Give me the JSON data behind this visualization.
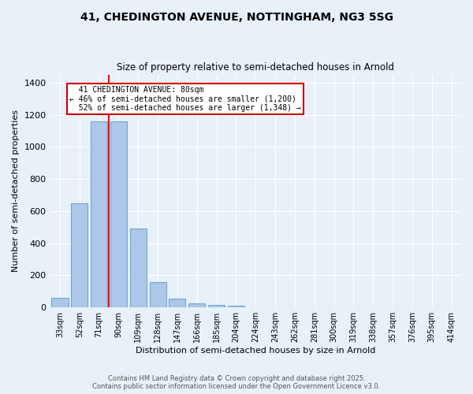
{
  "title_line1": "41, CHEDINGTON AVENUE, NOTTINGHAM, NG3 5SG",
  "title_line2": "Size of property relative to semi-detached houses in Arnold",
  "xlabel": "Distribution of semi-detached houses by size in Arnold",
  "ylabel": "Number of semi-detached properties",
  "categories": [
    "33sqm",
    "52sqm",
    "71sqm",
    "90sqm",
    "109sqm",
    "128sqm",
    "147sqm",
    "166sqm",
    "185sqm",
    "204sqm",
    "224sqm",
    "243sqm",
    "262sqm",
    "281sqm",
    "300sqm",
    "319sqm",
    "338sqm",
    "357sqm",
    "376sqm",
    "395sqm",
    "414sqm"
  ],
  "values": [
    60,
    650,
    1160,
    1160,
    490,
    160,
    55,
    25,
    15,
    10,
    0,
    0,
    0,
    0,
    0,
    0,
    0,
    0,
    0,
    0,
    0
  ],
  "bar_color": "#aec6e8",
  "bar_edge_color": "#6aaad4",
  "red_line_x": 2.5,
  "red_line_label": "41 CHEDINGTON AVENUE: 80sqm",
  "pct_smaller": "46% of semi-detached houses are smaller (1,200)",
  "pct_larger": "52% of semi-detached houses are larger (1,348)",
  "annotation_box_color": "#ffffff",
  "annotation_box_edge": "#cc0000",
  "ylim": [
    0,
    1450
  ],
  "yticks": [
    0,
    200,
    400,
    600,
    800,
    1000,
    1200,
    1400
  ],
  "footer_line1": "Contains HM Land Registry data © Crown copyright and database right 2025.",
  "footer_line2": "Contains public sector information licensed under the Open Government Licence v3.0.",
  "background_color": "#e8f0f8",
  "plot_bg_color": "#e8f0f8"
}
